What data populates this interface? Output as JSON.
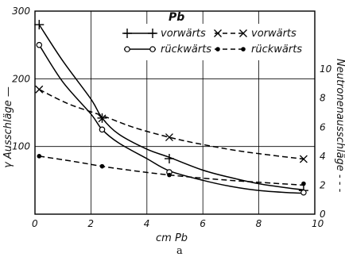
{
  "chart_data": {
    "type": "line",
    "title": "Pb",
    "caption": "a",
    "xlabel": "cm Pb",
    "ylabel_left": "γ Ausschläge —",
    "ylabel_right": "Neutronenausschläge - - -",
    "xlim": [
      0,
      10
    ],
    "ylim_left": [
      0,
      300
    ],
    "ylim_right": [
      0,
      14
    ],
    "x_ticks": [
      "0",
      "2",
      "4",
      "6",
      "8",
      "10"
    ],
    "y_left_ticks": [
      "100",
      "200",
      "300"
    ],
    "y_right_ticks": [
      "0",
      "2",
      "4",
      "6",
      "8",
      "10"
    ],
    "grid": true,
    "legend_position": "top",
    "series": [
      {
        "name": "vorwärts",
        "axis": "left",
        "line": "solid",
        "marker": "plus",
        "points": [
          [
            0.15,
            280
          ],
          [
            2.4,
            142
          ],
          [
            4.8,
            82
          ],
          [
            9.6,
            35
          ]
        ],
        "curve": [
          [
            0.15,
            280
          ],
          [
            1,
            226
          ],
          [
            2,
            170
          ],
          [
            2.4,
            142
          ],
          [
            3,
            118
          ],
          [
            4,
            96
          ],
          [
            4.8,
            84
          ],
          [
            6,
            65
          ],
          [
            7,
            54
          ],
          [
            8,
            45
          ],
          [
            9,
            39
          ],
          [
            9.6,
            36
          ]
        ]
      },
      {
        "name": "rückwärts",
        "axis": "left",
        "line": "solid",
        "marker": "open-circle",
        "points": [
          [
            0.15,
            250
          ],
          [
            2.4,
            125
          ],
          [
            4.8,
            62
          ],
          [
            9.6,
            32
          ]
        ],
        "curve": [
          [
            0.15,
            250
          ],
          [
            1,
            195
          ],
          [
            2,
            148
          ],
          [
            2.4,
            125
          ],
          [
            3,
            105
          ],
          [
            4,
            82
          ],
          [
            4.8,
            64
          ],
          [
            6,
            50
          ],
          [
            7,
            41
          ],
          [
            8,
            35
          ],
          [
            9,
            32
          ],
          [
            9.6,
            31
          ]
        ]
      },
      {
        "name": "vorwärts",
        "axis": "right",
        "line": "dashed",
        "marker": "x",
        "points": [
          [
            0.15,
            8.6
          ],
          [
            2.4,
            6.6
          ],
          [
            4.8,
            5.3
          ],
          [
            9.6,
            3.8
          ]
        ],
        "curve": [
          [
            0.15,
            8.6
          ],
          [
            1.2,
            7.6
          ],
          [
            2.4,
            6.8
          ],
          [
            3.5,
            6.0
          ],
          [
            4.8,
            5.3
          ],
          [
            6,
            4.8
          ],
          [
            7.5,
            4.3
          ],
          [
            9.6,
            3.8
          ]
        ]
      },
      {
        "name": "rückwärts",
        "axis": "right",
        "line": "dashed",
        "marker": "filled-dot",
        "points": [
          [
            0.15,
            4.0
          ],
          [
            2.4,
            3.3
          ],
          [
            4.8,
            2.7
          ],
          [
            9.6,
            2.1
          ]
        ],
        "curve": [
          [
            0.15,
            4.0
          ],
          [
            1.5,
            3.6
          ],
          [
            2.4,
            3.3
          ],
          [
            3.5,
            3.0
          ],
          [
            4.8,
            2.7
          ],
          [
            6.5,
            2.4
          ],
          [
            8,
            2.2
          ],
          [
            9.6,
            2.0
          ]
        ]
      }
    ]
  }
}
